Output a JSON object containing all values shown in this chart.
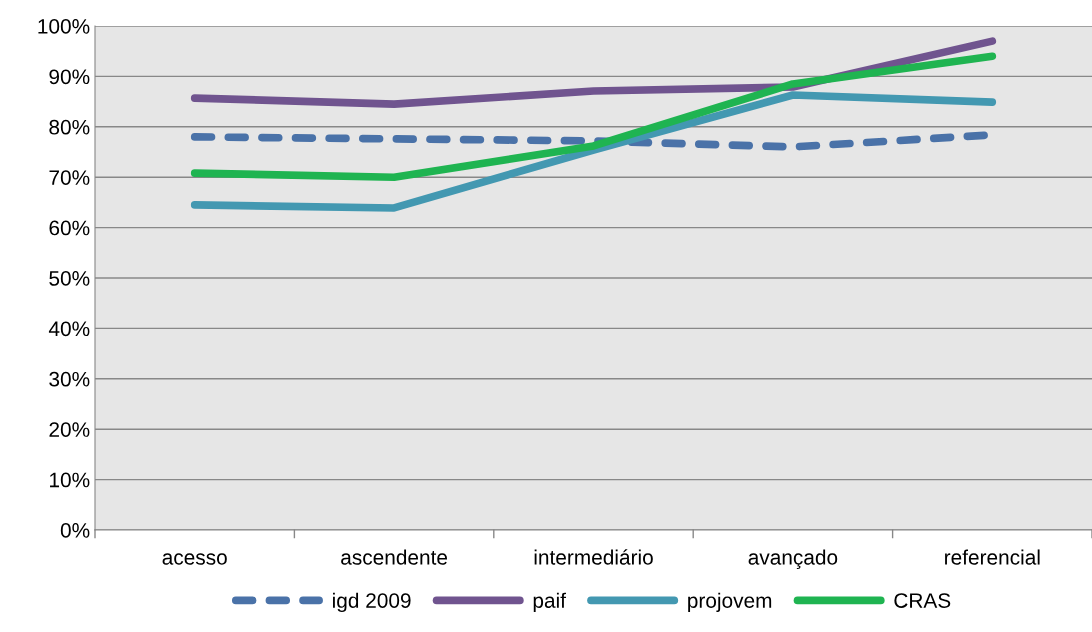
{
  "chart_data": {
    "type": "line",
    "categories": [
      "acesso",
      "ascendente",
      "intermediário",
      "avançado",
      "referencial"
    ],
    "series": [
      {
        "name": "igd 2009",
        "color": "#4a72a8",
        "line_style": "dashed",
        "values": [
          78.0,
          77.6,
          77.2,
          76.0,
          78.4
        ]
      },
      {
        "name": "paif",
        "color": "#70548f",
        "line_style": "solid",
        "values": [
          85.7,
          84.5,
          87.1,
          87.9,
          97.0
        ]
      },
      {
        "name": "projovem",
        "color": "#4398b1",
        "line_style": "solid",
        "values": [
          64.5,
          63.9,
          75.4,
          86.3,
          84.9
        ]
      },
      {
        "name": "CRAS",
        "color": "#1fb451",
        "line_style": "solid",
        "values": [
          70.8,
          70.0,
          76.2,
          88.5,
          94.0
        ]
      }
    ],
    "ylim": [
      0,
      100
    ],
    "yticks": [
      {
        "value": 0,
        "label": "0%"
      },
      {
        "value": 10,
        "label": "10%"
      },
      {
        "value": 20,
        "label": "20%"
      },
      {
        "value": 30,
        "label": "30%"
      },
      {
        "value": 40,
        "label": "40%"
      },
      {
        "value": 50,
        "label": "50%"
      },
      {
        "value": 60,
        "label": "60%"
      },
      {
        "value": 70,
        "label": "70%"
      },
      {
        "value": 80,
        "label": "80%"
      },
      {
        "value": 90,
        "label": "90%"
      },
      {
        "value": 100,
        "label": "100%"
      }
    ],
    "grid": "y",
    "legend": "bottom",
    "marker": "none"
  }
}
